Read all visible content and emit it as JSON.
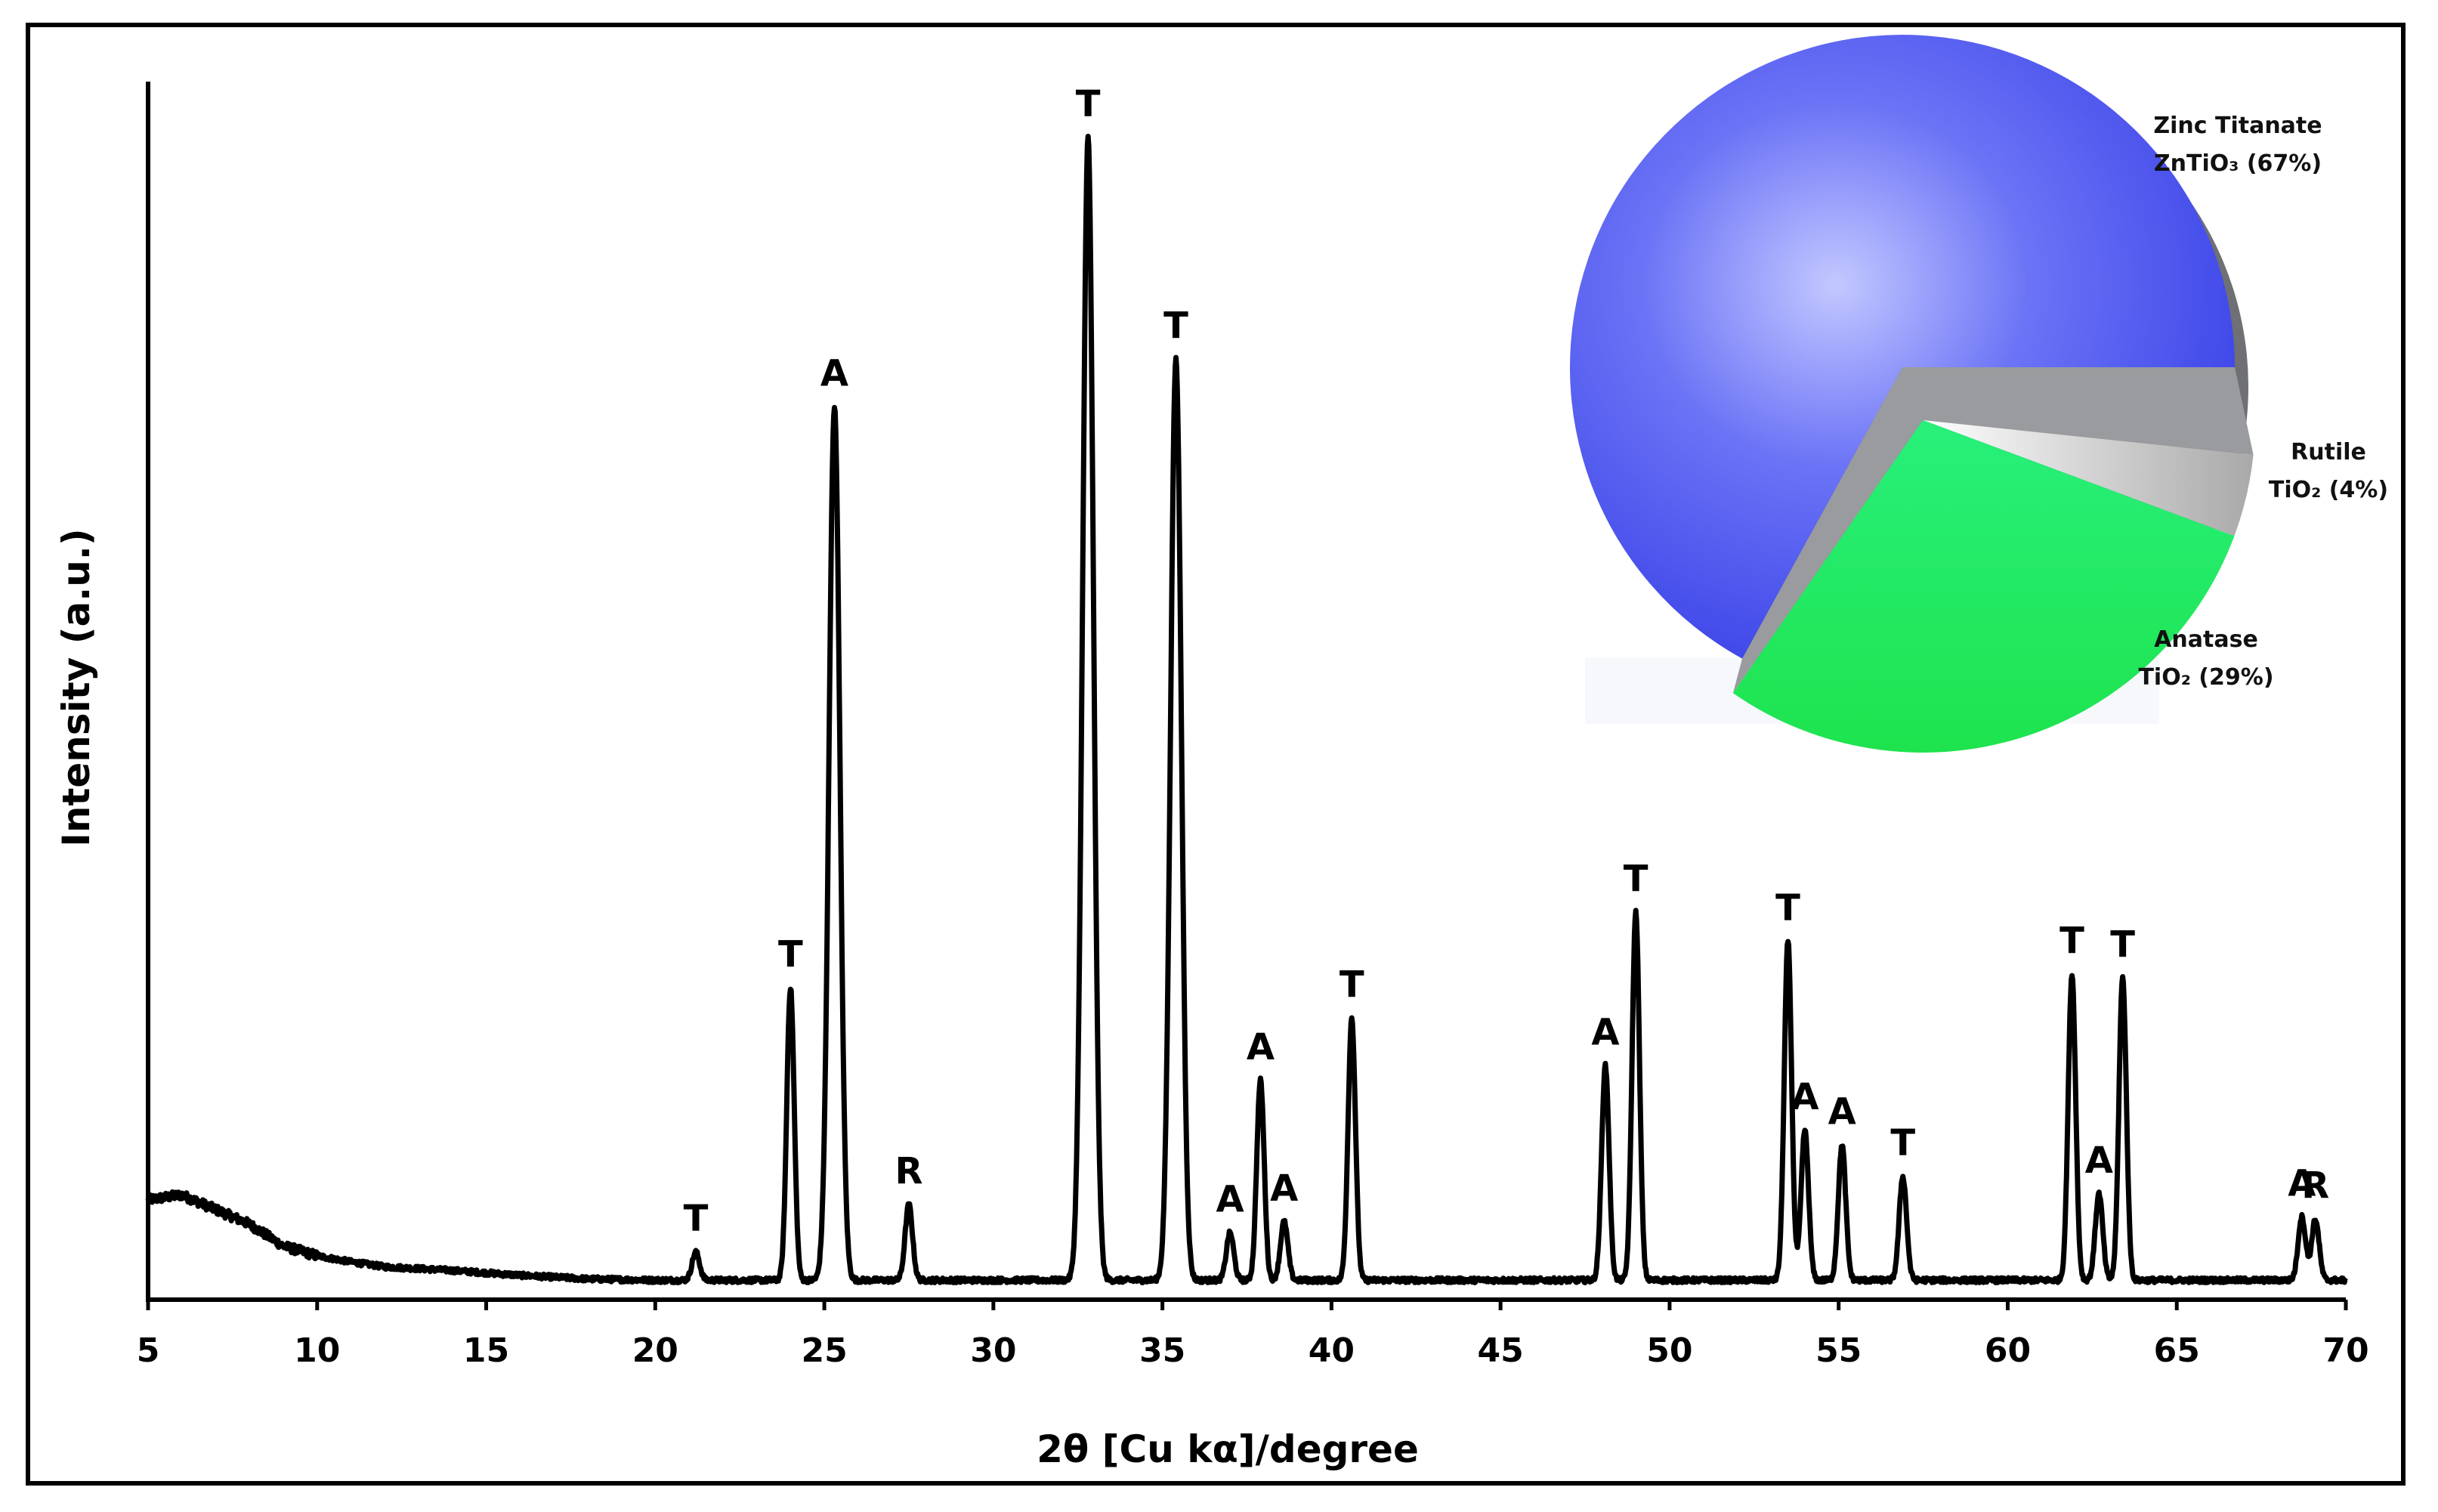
{
  "chart_data": [
    {
      "type": "line",
      "xlabel": "2θ [Cu kα]/degree",
      "ylabel": "Intensity (a.u.)",
      "xlim": [
        5,
        70
      ],
      "ylim": [
        0,
        100
      ],
      "x_ticks": [
        "5",
        "10",
        "15",
        "20",
        "25",
        "30",
        "35",
        "40",
        "45",
        "50",
        "55",
        "60",
        "65",
        "70"
      ],
      "grid": false,
      "baseline": {
        "x": [
          5,
          6,
          7,
          8,
          9,
          10,
          11,
          12,
          14,
          16,
          18,
          20,
          25,
          30,
          40,
          50,
          60,
          70
        ],
        "y": [
          8.2,
          8.6,
          7.4,
          6.2,
          4.4,
          3.6,
          3.1,
          2.7,
          2.4,
          2.0,
          1.7,
          1.6,
          1.6,
          1.6,
          1.6,
          1.6,
          1.6,
          1.6
        ]
      },
      "peaks": [
        {
          "x": 21.2,
          "y": 3.9,
          "label": "T"
        },
        {
          "x": 24.0,
          "y": 25.6,
          "label": "T"
        },
        {
          "x": 25.3,
          "y": 73.3,
          "label": "A"
        },
        {
          "x": 27.5,
          "y": 7.8,
          "label": "R"
        },
        {
          "x": 32.8,
          "y": 95.4,
          "label": "T"
        },
        {
          "x": 35.4,
          "y": 77.2,
          "label": "T"
        },
        {
          "x": 37.0,
          "y": 5.5,
          "label": "A"
        },
        {
          "x": 37.9,
          "y": 18.0,
          "label": "A"
        },
        {
          "x": 38.6,
          "y": 6.4,
          "label": "A"
        },
        {
          "x": 40.6,
          "y": 23.1,
          "label": "T"
        },
        {
          "x": 48.1,
          "y": 19.2,
          "label": "A"
        },
        {
          "x": 49.0,
          "y": 31.8,
          "label": "T"
        },
        {
          "x": 53.5,
          "y": 29.4,
          "label": "T"
        },
        {
          "x": 54.0,
          "y": 13.9,
          "label": "A"
        },
        {
          "x": 55.1,
          "y": 12.7,
          "label": "A"
        },
        {
          "x": 56.9,
          "y": 10.1,
          "label": "T"
        },
        {
          "x": 61.9,
          "y": 26.7,
          "label": "T"
        },
        {
          "x": 62.7,
          "y": 8.7,
          "label": "A"
        },
        {
          "x": 63.4,
          "y": 26.4,
          "label": "T"
        },
        {
          "x": 68.7,
          "y": 6.8,
          "label": "A"
        },
        {
          "x": 69.1,
          "y": 6.6,
          "label": "R"
        }
      ]
    },
    {
      "type": "pie",
      "slices": [
        {
          "label_line1": "Zinc Titanate",
          "label_line2": "ZnTiO₃ (67%)",
          "value": 67,
          "color": "#4f59f3"
        },
        {
          "label_line1": "Rutile",
          "label_line2": "TiO₂ (4%)",
          "value": 4,
          "color": "#d9d9d9"
        },
        {
          "label_line1": "Anatase",
          "label_line2": "TiO₂ (29%)",
          "value": 29,
          "color": "#22f25a"
        }
      ]
    }
  ]
}
